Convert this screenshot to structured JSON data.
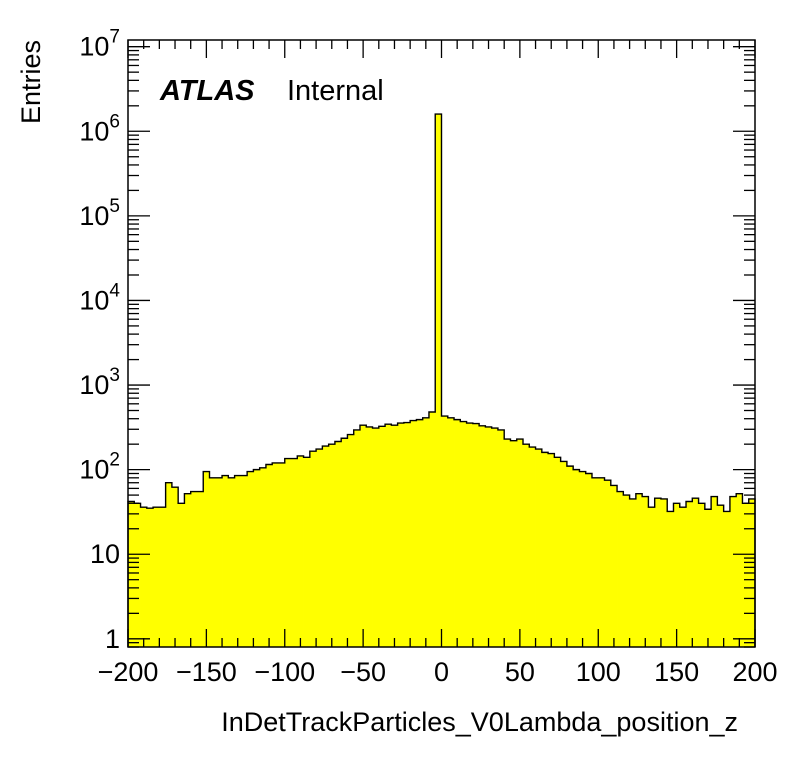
{
  "chart_data": {
    "type": "bar",
    "style": "histogram",
    "fill_color": "#ffff00",
    "line_color": "#000000",
    "xlabel": "InDetTrackParticles_V0Lambda_position_z",
    "ylabel": "Entries",
    "xlim": [
      -200,
      200
    ],
    "ylim": [
      0.8,
      12000000
    ],
    "log_y": true,
    "grid": false,
    "x_ticks": [
      {
        "value": -200,
        "label": "−200"
      },
      {
        "value": -150,
        "label": "−150"
      },
      {
        "value": -100,
        "label": "−100"
      },
      {
        "value": -50,
        "label": "−50"
      },
      {
        "value": 0,
        "label": "0"
      },
      {
        "value": 50,
        "label": "50"
      },
      {
        "value": 100,
        "label": "100"
      },
      {
        "value": 150,
        "label": "150"
      },
      {
        "value": 200,
        "label": "200"
      }
    ],
    "y_ticks": [
      {
        "value": 1,
        "label": "1"
      },
      {
        "value": 10,
        "label": "10"
      },
      {
        "value": 100,
        "base": "10",
        "exp": "2"
      },
      {
        "value": 1000,
        "base": "10",
        "exp": "3"
      },
      {
        "value": 10000,
        "base": "10",
        "exp": "4"
      },
      {
        "value": 100000,
        "base": "10",
        "exp": "5"
      },
      {
        "value": 1000000,
        "base": "10",
        "exp": "6"
      },
      {
        "value": 10000000,
        "base": "10",
        "exp": "7"
      }
    ],
    "bin_edges_range": [
      -200,
      200
    ],
    "bin_width": 4,
    "values": [
      42,
      40,
      36,
      35,
      36,
      36,
      70,
      62,
      40,
      52,
      55,
      55,
      95,
      80,
      80,
      85,
      80,
      85,
      85,
      95,
      100,
      105,
      115,
      120,
      120,
      135,
      135,
      145,
      140,
      165,
      175,
      190,
      200,
      215,
      235,
      260,
      295,
      335,
      320,
      310,
      325,
      345,
      335,
      355,
      360,
      380,
      390,
      410,
      480,
      1600000,
      430,
      410,
      390,
      370,
      355,
      350,
      330,
      320,
      310,
      295,
      230,
      220,
      230,
      200,
      185,
      175,
      160,
      155,
      140,
      125,
      110,
      100,
      95,
      90,
      80,
      80,
      75,
      65,
      55,
      50,
      45,
      52,
      48,
      36,
      46,
      45,
      32,
      40,
      36,
      42,
      46,
      40,
      34,
      48,
      38,
      32,
      48,
      52,
      40,
      45
    ],
    "annotation": {
      "experiment": "ATLAS",
      "status": "Internal"
    }
  }
}
